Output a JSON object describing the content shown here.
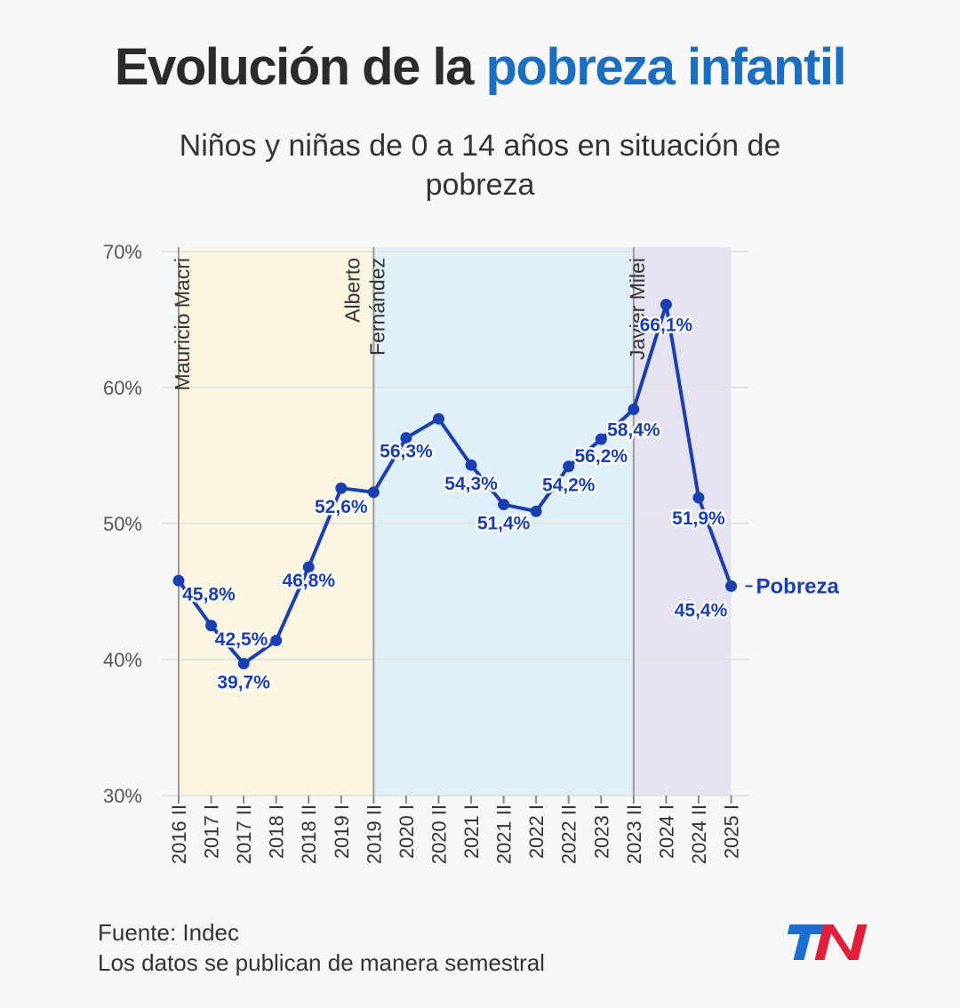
{
  "title": {
    "part1": "Evolución de la",
    "part2": "pobreza infantil"
  },
  "subtitle": "Niños y niñas de 0 a 14 años en situación de pobreza",
  "colors": {
    "line": "#1a3fb0",
    "title_accent": "#1c6fc0",
    "macri_band": "#faf6e2",
    "fernandez_band": "#e1f0f8",
    "milei_band": "#e6e2ef",
    "logo_blue": "#1a6fd0",
    "logo_red": "#e0203a"
  },
  "chart_data": {
    "type": "line",
    "categories": [
      "2016 II",
      "2017 I",
      "2017 II",
      "2018 I",
      "2018 II",
      "2019 I",
      "2019 II",
      "2020 I",
      "2020 II",
      "2021 I",
      "2021 II",
      "2022 I",
      "2022 II",
      "2023 I",
      "2023 II",
      "2024 I",
      "2024 II",
      "2025 I"
    ],
    "series": [
      {
        "name": "Pobreza",
        "values": [
          45.8,
          42.5,
          39.7,
          41.4,
          46.8,
          52.6,
          52.3,
          56.3,
          57.7,
          54.3,
          51.4,
          50.9,
          54.2,
          56.2,
          58.4,
          66.1,
          51.9,
          45.4
        ],
        "labels": [
          "45,8%",
          "42,5%",
          "39,7%",
          "",
          "46,8%",
          "52,6%",
          "",
          "56,3%",
          "",
          "54,3%",
          "51,4%",
          "",
          "54,2%",
          "56,2%",
          "58,4%",
          "66,1%",
          "51,9%",
          "45,4%"
        ]
      }
    ],
    "y_ticks": [
      30,
      40,
      50,
      60,
      70
    ],
    "y_tick_labels": [
      "30%",
      "40%",
      "50%",
      "60%",
      "70%"
    ],
    "ylim": [
      30,
      70
    ],
    "grid": true,
    "periods": [
      {
        "name": "Mauricio Macri",
        "lines": [
          "Mauricio Macri"
        ],
        "start": "2016 II",
        "end": "2019 II"
      },
      {
        "name": "Alberto Fernández",
        "lines": [
          "Alberto",
          "Fernández"
        ],
        "start": "2019 II",
        "end": "2023 II"
      },
      {
        "name": "Javier Milei",
        "lines": [
          "Javier Milei"
        ],
        "start": "2023 II",
        "end": "2025 I"
      }
    ]
  },
  "footer": {
    "source": "Fuente: Indec",
    "note": "Los datos se publican de manera semestral"
  },
  "logo": {
    "text": "TN"
  }
}
